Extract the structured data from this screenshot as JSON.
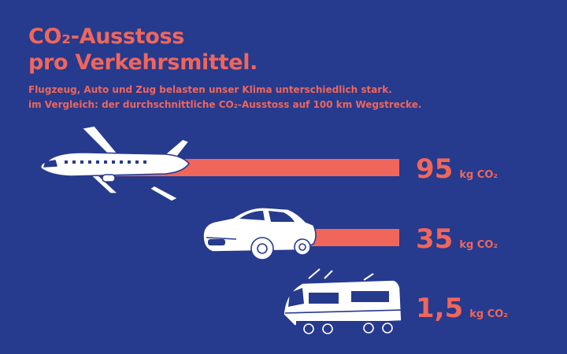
{
  "header": {
    "title_line1": "CO₂-Ausstoss",
    "title_line2": "pro Verkehrsmittel.",
    "subtitle_line1": "Flugzeug, Auto und Zug belasten unser Klima unterschiedlich stark.",
    "subtitle_line2": "im Vergleich: der durchschnittliche CO₂-Ausstoss auf 100 km Wegstrecke."
  },
  "colors": {
    "background": "#263a8e",
    "accent": "#f0665b",
    "vehicle_fill": "#ffffff"
  },
  "chart_data": {
    "type": "bar",
    "orientation": "horizontal",
    "title": "CO₂-Ausstoss pro Verkehrsmittel.",
    "unit": "kg CO₂",
    "categories": [
      "Flugzeug",
      "Auto",
      "Zug"
    ],
    "values": [
      95,
      35,
      1.5
    ],
    "value_labels": [
      "95",
      "35",
      "1,5"
    ],
    "icons": [
      "airplane-icon",
      "car-icon",
      "train-icon"
    ],
    "grid": false
  }
}
